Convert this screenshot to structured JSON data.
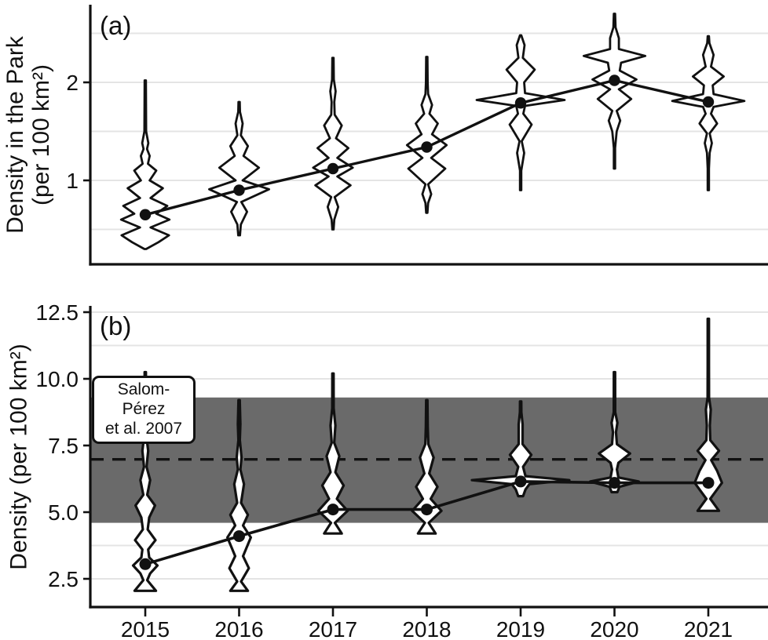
{
  "figure": {
    "colors": {
      "ink": "#111111",
      "grid": "#e4e4e4",
      "band": "#6a6a6a",
      "violin_fill": "#ffffff",
      "background": "#ffffff"
    }
  },
  "chart_data": {
    "type": "violin",
    "categories": [
      "2015",
      "2016",
      "2017",
      "2018",
      "2019",
      "2020",
      "2021"
    ],
    "xlabel": "",
    "legend": "none",
    "grid": "on",
    "panels": [
      {
        "label": "(a)",
        "ylabel": "Density in the Park (per 100 km²)",
        "ylabel_lines": [
          "Density in the Park",
          "(per 100 km²)"
        ],
        "ylim": [
          0.14,
          2.78
        ],
        "yticks": [
          {
            "v": 1,
            "label": "1"
          },
          {
            "v": 2,
            "label": "2"
          }
        ],
        "gridlines": [
          0.5,
          1.0,
          1.5,
          2.0,
          2.5
        ],
        "means": [
          0.65,
          0.9,
          1.12,
          1.34,
          1.79,
          2.02,
          1.8
        ],
        "violins": [
          {
            "year": "2015",
            "range": [
              0.3,
              2.02
            ],
            "profile": [
              [
                0.3,
                0.02
              ],
              [
                0.37,
                0.3
              ],
              [
                0.44,
                0.54
              ],
              [
                0.52,
                0.12
              ],
              [
                0.6,
                0.55
              ],
              [
                0.66,
                0.25
              ],
              [
                0.74,
                0.5
              ],
              [
                0.82,
                0.12
              ],
              [
                0.92,
                0.4
              ],
              [
                1.0,
                0.1
              ],
              [
                1.1,
                0.25
              ],
              [
                1.17,
                0.06
              ],
              [
                1.25,
                0.1
              ],
              [
                1.32,
                0.04
              ],
              [
                1.38,
                0.07
              ],
              [
                1.5,
                0.02
              ],
              [
                2.02,
                0.013
              ]
            ]
          },
          {
            "year": "2016",
            "range": [
              0.44,
              1.8
            ],
            "profile": [
              [
                0.44,
                0.02
              ],
              [
                0.55,
                0.04
              ],
              [
                0.68,
                0.18
              ],
              [
                0.78,
                0.05
              ],
              [
                0.91,
                0.68
              ],
              [
                1.0,
                0.08
              ],
              [
                1.13,
                0.45
              ],
              [
                1.25,
                0.1
              ],
              [
                1.35,
                0.2
              ],
              [
                1.46,
                0.04
              ],
              [
                1.58,
                0.08
              ],
              [
                1.7,
                0.02
              ],
              [
                1.8,
                0.015
              ]
            ]
          },
          {
            "year": "2017",
            "range": [
              0.5,
              2.25
            ],
            "profile": [
              [
                0.5,
                0.015
              ],
              [
                0.6,
                0.03
              ],
              [
                0.73,
                0.12
              ],
              [
                0.83,
                0.04
              ],
              [
                0.95,
                0.4
              ],
              [
                1.04,
                0.1
              ],
              [
                1.13,
                0.45
              ],
              [
                1.23,
                0.1
              ],
              [
                1.33,
                0.35
              ],
              [
                1.43,
                0.07
              ],
              [
                1.56,
                0.2
              ],
              [
                1.67,
                0.04
              ],
              [
                1.8,
                0.03
              ],
              [
                1.91,
                0.06
              ],
              [
                2.03,
                0.02
              ],
              [
                2.25,
                0.013
              ]
            ]
          },
          {
            "year": "2018",
            "range": [
              0.67,
              2.26
            ],
            "profile": [
              [
                0.67,
                0.015
              ],
              [
                0.77,
                0.03
              ],
              [
                0.86,
                0.1
              ],
              [
                0.96,
                0.03
              ],
              [
                1.12,
                0.42
              ],
              [
                1.23,
                0.1
              ],
              [
                1.36,
                0.45
              ],
              [
                1.47,
                0.12
              ],
              [
                1.58,
                0.25
              ],
              [
                1.68,
                0.06
              ],
              [
                1.77,
                0.12
              ],
              [
                1.88,
                0.03
              ],
              [
                2.0,
                0.02
              ],
              [
                2.26,
                0.013
              ]
            ]
          },
          {
            "year": "2019",
            "range": [
              0.9,
              2.48
            ],
            "profile": [
              [
                0.9,
                0.013
              ],
              [
                1.1,
                0.015
              ],
              [
                1.28,
                0.08
              ],
              [
                1.4,
                0.025
              ],
              [
                1.57,
                0.25
              ],
              [
                1.68,
                0.06
              ],
              [
                1.76,
                0.1
              ],
              [
                1.82,
                1.0
              ],
              [
                1.89,
                0.1
              ],
              [
                2.0,
                0.08
              ],
              [
                2.13,
                0.32
              ],
              [
                2.25,
                0.05
              ],
              [
                2.38,
                0.09
              ],
              [
                2.48,
                0.015
              ]
            ]
          },
          {
            "year": "2020",
            "range": [
              1.12,
              2.7
            ],
            "profile": [
              [
                1.12,
                0.013
              ],
              [
                1.33,
                0.015
              ],
              [
                1.5,
                0.05
              ],
              [
                1.61,
                0.13
              ],
              [
                1.71,
                0.05
              ],
              [
                1.83,
                0.38
              ],
              [
                1.93,
                0.1
              ],
              [
                2.03,
                0.5
              ],
              [
                2.12,
                0.12
              ],
              [
                2.2,
                0.15
              ],
              [
                2.27,
                0.7
              ],
              [
                2.34,
                0.1
              ],
              [
                2.45,
                0.1
              ],
              [
                2.56,
                0.025
              ],
              [
                2.7,
                0.013
              ]
            ]
          },
          {
            "year": "2021",
            "range": [
              0.9,
              2.47
            ],
            "profile": [
              [
                0.9,
                0.013
              ],
              [
                1.12,
                0.015
              ],
              [
                1.28,
                0.03
              ],
              [
                1.38,
                0.08
              ],
              [
                1.48,
                0.03
              ],
              [
                1.58,
                0.2
              ],
              [
                1.68,
                0.06
              ],
              [
                1.75,
                0.12
              ],
              [
                1.81,
                0.82
              ],
              [
                1.88,
                0.12
              ],
              [
                1.97,
                0.1
              ],
              [
                2.06,
                0.35
              ],
              [
                2.16,
                0.06
              ],
              [
                2.28,
                0.12
              ],
              [
                2.4,
                0.025
              ],
              [
                2.47,
                0.015
              ]
            ]
          }
        ]
      },
      {
        "label": "(b)",
        "ylabel": "Density (per 100 km²)",
        "ylim": [
          1.4,
          12.8
        ],
        "yticks": [
          {
            "v": 2.5,
            "label": "2.5"
          },
          {
            "v": 5.0,
            "label": "5.0"
          },
          {
            "v": 7.5,
            "label": "7.5"
          },
          {
            "v": 10.0,
            "label": "10.0"
          },
          {
            "v": 12.5,
            "label": "12.5"
          }
        ],
        "gridlines": [
          2.5,
          3.75,
          5.0,
          6.25,
          7.5,
          8.75,
          10.0,
          11.25,
          12.5
        ],
        "band": {
          "from": 4.6,
          "to": 9.3
        },
        "dashed_line": {
          "value": 6.98
        },
        "annotation_lines": [
          "Salom-Pérez",
          "et al. 2007"
        ],
        "annotation": "Salom-Pérez et al. 2007",
        "means": [
          3.05,
          4.1,
          5.1,
          5.1,
          6.15,
          6.1,
          6.1
        ],
        "violins": [
          {
            "year": "2015",
            "range": [
              2.05,
              10.25
            ],
            "profile": [
              [
                2.05,
                0.22
              ],
              [
                2.45,
                0.04
              ],
              [
                2.7,
                0.1
              ],
              [
                3.0,
                0.25
              ],
              [
                3.3,
                0.08
              ],
              [
                3.6,
                0.06
              ],
              [
                3.95,
                0.21
              ],
              [
                4.35,
                0.05
              ],
              [
                4.8,
                0.08
              ],
              [
                5.25,
                0.2
              ],
              [
                5.65,
                0.04
              ],
              [
                6.2,
                0.1
              ],
              [
                6.7,
                0.025
              ],
              [
                7.3,
                0.06
              ],
              [
                7.9,
                0.02
              ],
              [
                8.4,
                0.03
              ],
              [
                9.2,
                0.015
              ],
              [
                10.25,
                0.012
              ]
            ]
          },
          {
            "year": "2016",
            "range": [
              2.05,
              9.2
            ],
            "profile": [
              [
                2.05,
                0.18
              ],
              [
                2.4,
                0.04
              ],
              [
                2.9,
                0.2
              ],
              [
                3.35,
                0.08
              ],
              [
                4.05,
                0.24
              ],
              [
                4.5,
                0.08
              ],
              [
                4.9,
                0.18
              ],
              [
                5.35,
                0.04
              ],
              [
                6.05,
                0.1
              ],
              [
                6.6,
                0.025
              ],
              [
                7.05,
                0.05
              ],
              [
                7.7,
                0.015
              ],
              [
                8.3,
                0.025
              ],
              [
                9.2,
                0.012
              ]
            ]
          },
          {
            "year": "2017",
            "range": [
              4.2,
              10.2
            ],
            "profile": [
              [
                4.2,
                0.18
              ],
              [
                4.6,
                0.04
              ],
              [
                5.05,
                0.3
              ],
              [
                5.5,
                0.08
              ],
              [
                6.0,
                0.22
              ],
              [
                6.5,
                0.05
              ],
              [
                7.1,
                0.13
              ],
              [
                7.6,
                0.025
              ],
              [
                8.25,
                0.05
              ],
              [
                8.9,
                0.015
              ],
              [
                10.2,
                0.012
              ]
            ]
          },
          {
            "year": "2018",
            "range": [
              4.2,
              9.2
            ],
            "profile": [
              [
                4.2,
                0.18
              ],
              [
                4.6,
                0.04
              ],
              [
                5.05,
                0.3
              ],
              [
                5.5,
                0.08
              ],
              [
                5.95,
                0.22
              ],
              [
                6.45,
                0.05
              ],
              [
                7.05,
                0.14
              ],
              [
                7.55,
                0.03
              ],
              [
                8.2,
                0.02
              ],
              [
                9.2,
                0.012
              ]
            ]
          },
          {
            "year": "2019",
            "range": [
              5.6,
              9.15
            ],
            "profile": [
              [
                5.6,
                0.05
              ],
              [
                5.85,
                0.1
              ],
              [
                6.05,
                0.18
              ],
              [
                6.2,
                1.0
              ],
              [
                6.35,
                0.1
              ],
              [
                6.7,
                0.05
              ],
              [
                7.15,
                0.22
              ],
              [
                7.55,
                0.04
              ],
              [
                8.3,
                0.04
              ],
              [
                8.75,
                0.015
              ],
              [
                9.15,
                0.012
              ]
            ]
          },
          {
            "year": "2020",
            "range": [
              5.75,
              10.25
            ],
            "profile": [
              [
                5.75,
                0.06
              ],
              [
                5.95,
                0.1
              ],
              [
                6.15,
                0.5
              ],
              [
                6.3,
                0.08
              ],
              [
                6.6,
                0.05
              ],
              [
                6.85,
                0.08
              ],
              [
                7.2,
                0.32
              ],
              [
                7.55,
                0.05
              ],
              [
                8.0,
                0.03
              ],
              [
                8.35,
                0.06
              ],
              [
                8.75,
                0.015
              ],
              [
                10.25,
                0.012
              ]
            ]
          },
          {
            "year": "2021",
            "range": [
              5.05,
              12.25
            ],
            "profile": [
              [
                5.05,
                0.22
              ],
              [
                5.5,
                0.04
              ],
              [
                6.1,
                0.28
              ],
              [
                6.55,
                0.18
              ],
              [
                6.95,
                0.06
              ],
              [
                7.3,
                0.22
              ],
              [
                7.7,
                0.04
              ],
              [
                8.25,
                0.03
              ],
              [
                8.85,
                0.05
              ],
              [
                9.3,
                0.015
              ],
              [
                10.5,
                0.012
              ],
              [
                12.25,
                0.012
              ]
            ]
          }
        ]
      }
    ]
  }
}
